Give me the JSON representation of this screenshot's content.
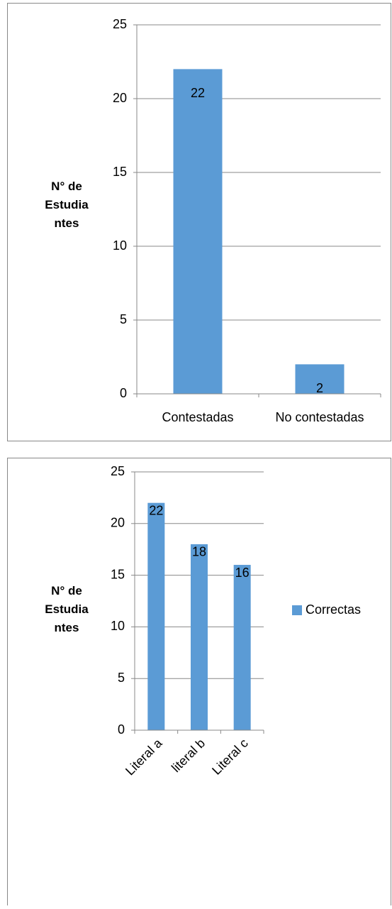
{
  "chart_data": [
    {
      "type": "bar",
      "ylabel": "N° de Estudiantes",
      "categories": [
        "Contestadas",
        "No contestadas"
      ],
      "values": [
        22,
        2
      ],
      "color": "#5b9bd5",
      "ylim": [
        0,
        25
      ],
      "yticks": [
        0,
        5,
        10,
        15,
        20,
        25
      ],
      "grid": true
    },
    {
      "type": "bar",
      "ylabel": "N° de Estudiantes",
      "categories": [
        "Literal a",
        "literal b",
        "Literal c"
      ],
      "series": [
        {
          "name": "Correctas",
          "color": "#5b9bd5",
          "values": [
            22,
            18,
            16
          ]
        }
      ],
      "ylim": [
        0,
        25
      ],
      "yticks": [
        0,
        5,
        10,
        15,
        20,
        25
      ],
      "grid": true,
      "legend": "right"
    }
  ]
}
